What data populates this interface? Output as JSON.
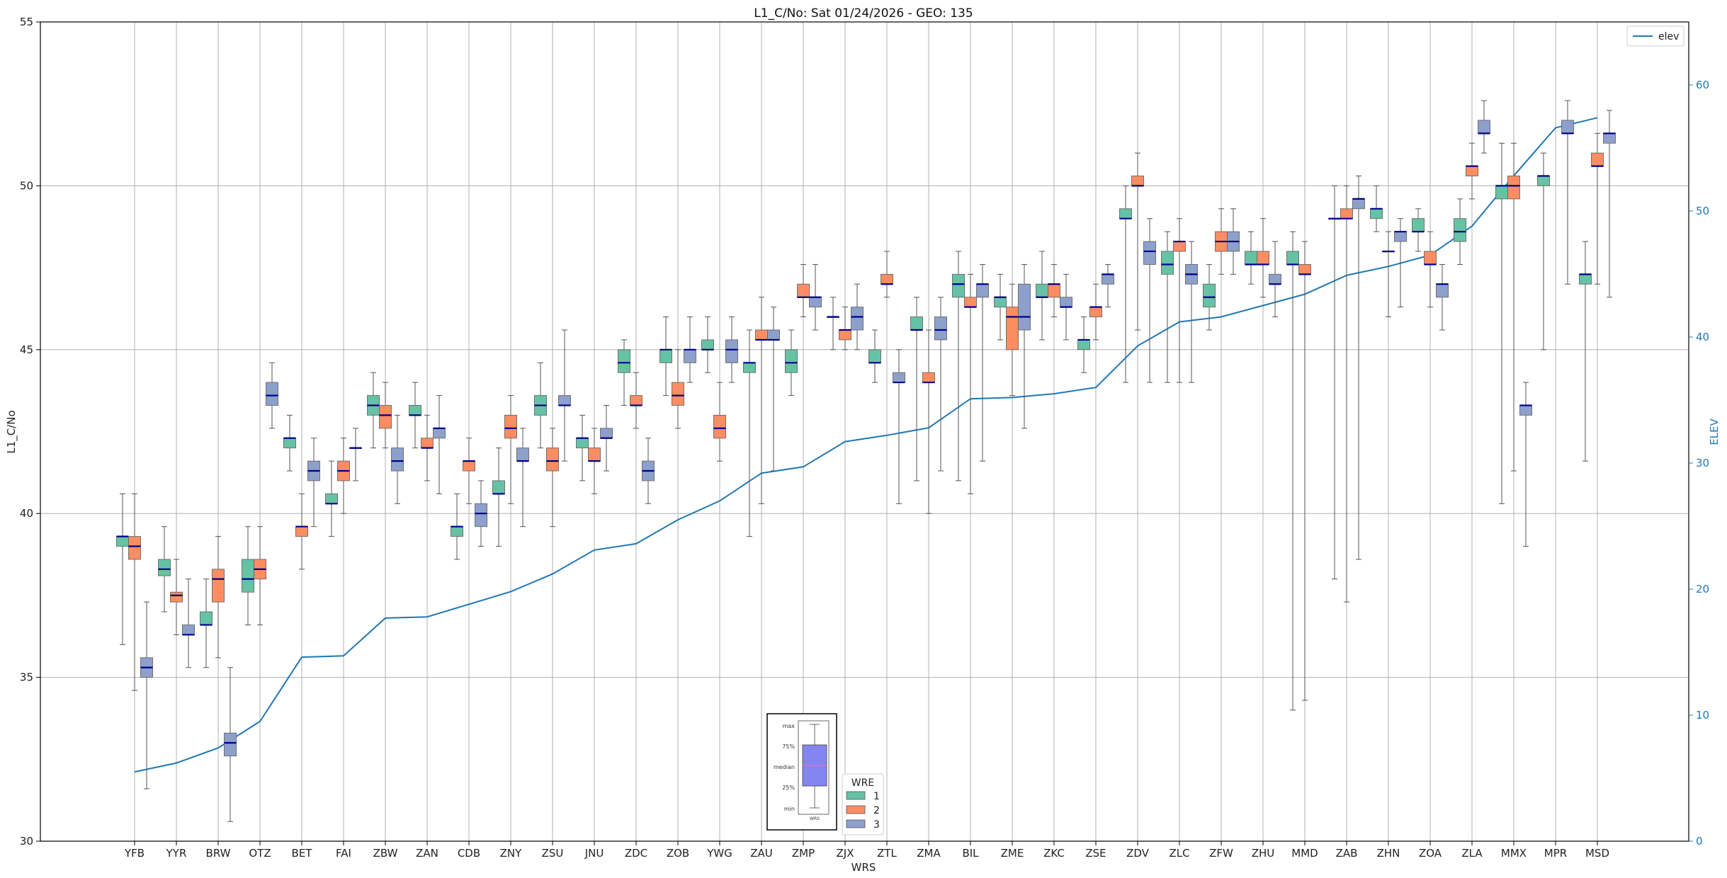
{
  "chart_data": {
    "type": "box",
    "title": "L1_C/No: Sat 01/24/2026 - GEO: 135",
    "xlabel": "WRS",
    "ylabel": "L1_C/No",
    "y2label": "ELEV",
    "ylim": [
      30,
      55
    ],
    "yticks": [
      30,
      35,
      40,
      45,
      50,
      55
    ],
    "y2lim": [
      0,
      65
    ],
    "y2ticks": [
      0,
      10,
      20,
      30,
      40,
      50,
      60
    ],
    "grid": true,
    "colors": {
      "1": "#66c2a5",
      "2": "#fc8d62",
      "3": "#8da0cb",
      "median": "#00008b",
      "elev": "#1f77b4"
    },
    "categories": [
      "YFB",
      "YYR",
      "BRW",
      "OTZ",
      "BET",
      "FAI",
      "ZBW",
      "ZAN",
      "CDB",
      "ZNY",
      "ZSU",
      "JNU",
      "ZDC",
      "ZOB",
      "YWG",
      "ZAU",
      "ZMP",
      "ZJX",
      "ZTL",
      "ZMA",
      "BIL",
      "ZME",
      "ZKC",
      "ZSE",
      "ZDV",
      "ZLC",
      "ZFW",
      "ZHU",
      "MMD",
      "ZAB",
      "ZHN",
      "ZOA",
      "ZLA",
      "MMX",
      "MPR",
      "MSD"
    ],
    "elev_legend": "elev",
    "elev": [
      5.5,
      6.2,
      7.4,
      9.5,
      14.6,
      14.7,
      17.7,
      17.8,
      18.8,
      19.8,
      21.2,
      23.1,
      23.6,
      25.5,
      27.0,
      29.2,
      29.7,
      31.7,
      32.2,
      32.8,
      35.1,
      35.2,
      35.5,
      36.0,
      39.3,
      41.2,
      41.6,
      42.5,
      43.4,
      44.9,
      45.6,
      46.5,
      48.8,
      52.8,
      56.6,
      57.4
    ],
    "boxes": [
      {
        "station": "YFB",
        "wre": "1",
        "min": 36.0,
        "q1": 39.0,
        "median": 39.3,
        "q3": 39.3,
        "max": 40.6
      },
      {
        "station": "YFB",
        "wre": "2",
        "min": 34.6,
        "q1": 38.6,
        "median": 39.0,
        "q3": 39.3,
        "max": 40.6
      },
      {
        "station": "YFB",
        "wre": "3",
        "min": 31.6,
        "q1": 35.0,
        "median": 35.3,
        "q3": 35.6,
        "max": 37.3
      },
      {
        "station": "YYR",
        "wre": "1",
        "min": 37.0,
        "q1": 38.1,
        "median": 38.3,
        "q3": 38.6,
        "max": 39.6
      },
      {
        "station": "YYR",
        "wre": "2",
        "min": 36.3,
        "q1": 37.3,
        "median": 37.5,
        "q3": 37.6,
        "max": 38.6
      },
      {
        "station": "YYR",
        "wre": "3",
        "min": 35.3,
        "q1": 36.3,
        "median": 36.3,
        "q3": 36.6,
        "max": 38.0
      },
      {
        "station": "BRW",
        "wre": "1",
        "min": 35.3,
        "q1": 36.6,
        "median": 36.6,
        "q3": 37.0,
        "max": 38.0
      },
      {
        "station": "BRW",
        "wre": "2",
        "min": 35.6,
        "q1": 37.3,
        "median": 38.0,
        "q3": 38.3,
        "max": 39.3
      },
      {
        "station": "BRW",
        "wre": "3",
        "min": 30.6,
        "q1": 32.6,
        "median": 33.0,
        "q3": 33.3,
        "max": 35.3
      },
      {
        "station": "OTZ",
        "wre": "1",
        "min": 36.6,
        "q1": 37.6,
        "median": 38.0,
        "q3": 38.6,
        "max": 39.6
      },
      {
        "station": "OTZ",
        "wre": "2",
        "min": 36.6,
        "q1": 38.0,
        "median": 38.3,
        "q3": 38.6,
        "max": 39.6
      },
      {
        "station": "OTZ",
        "wre": "3",
        "min": 42.6,
        "q1": 43.3,
        "median": 43.6,
        "q3": 44.0,
        "max": 44.6
      },
      {
        "station": "BET",
        "wre": "1",
        "min": 41.3,
        "q1": 42.0,
        "median": 42.3,
        "q3": 42.3,
        "max": 43.0
      },
      {
        "station": "BET",
        "wre": "2",
        "min": 38.3,
        "q1": 39.3,
        "median": 39.6,
        "q3": 39.6,
        "max": 40.6
      },
      {
        "station": "BET",
        "wre": "3",
        "min": 39.6,
        "q1": 41.0,
        "median": 41.3,
        "q3": 41.6,
        "max": 42.3
      },
      {
        "station": "FAI",
        "wre": "1",
        "min": 39.3,
        "q1": 40.3,
        "median": 40.3,
        "q3": 40.6,
        "max": 41.6
      },
      {
        "station": "FAI",
        "wre": "2",
        "min": 40.0,
        "q1": 41.0,
        "median": 41.3,
        "q3": 41.6,
        "max": 42.3
      },
      {
        "station": "FAI",
        "wre": "3",
        "min": 41.0,
        "q1": 42.0,
        "median": 42.0,
        "q3": 42.0,
        "max": 42.6
      },
      {
        "station": "ZBW",
        "wre": "1",
        "min": 42.0,
        "q1": 43.0,
        "median": 43.3,
        "q3": 43.6,
        "max": 44.3
      },
      {
        "station": "ZBW",
        "wre": "2",
        "min": 42.0,
        "q1": 42.6,
        "median": 43.0,
        "q3": 43.3,
        "max": 44.0
      },
      {
        "station": "ZBW",
        "wre": "3",
        "min": 40.3,
        "q1": 41.3,
        "median": 41.6,
        "q3": 42.0,
        "max": 43.0
      },
      {
        "station": "ZAN",
        "wre": "1",
        "min": 42.0,
        "q1": 43.0,
        "median": 43.0,
        "q3": 43.3,
        "max": 44.0
      },
      {
        "station": "ZAN",
        "wre": "2",
        "min": 41.0,
        "q1": 42.0,
        "median": 42.0,
        "q3": 42.3,
        "max": 43.0
      },
      {
        "station": "ZAN",
        "wre": "3",
        "min": 40.6,
        "q1": 42.3,
        "median": 42.6,
        "q3": 42.6,
        "max": 43.6
      },
      {
        "station": "CDB",
        "wre": "1",
        "min": 38.6,
        "q1": 39.3,
        "median": 39.6,
        "q3": 39.6,
        "max": 40.6
      },
      {
        "station": "CDB",
        "wre": "2",
        "min": 40.3,
        "q1": 41.3,
        "median": 41.6,
        "q3": 41.6,
        "max": 42.3
      },
      {
        "station": "CDB",
        "wre": "3",
        "min": 39.0,
        "q1": 39.6,
        "median": 40.0,
        "q3": 40.3,
        "max": 41.0
      },
      {
        "station": "ZNY",
        "wre": "1",
        "min": 39.0,
        "q1": 40.6,
        "median": 40.6,
        "q3": 41.0,
        "max": 42.0
      },
      {
        "station": "ZNY",
        "wre": "2",
        "min": 40.3,
        "q1": 42.3,
        "median": 42.6,
        "q3": 43.0,
        "max": 43.6
      },
      {
        "station": "ZNY",
        "wre": "3",
        "min": 39.6,
        "q1": 41.6,
        "median": 41.6,
        "q3": 42.0,
        "max": 42.6
      },
      {
        "station": "ZSU",
        "wre": "1",
        "min": 42.0,
        "q1": 43.0,
        "median": 43.3,
        "q3": 43.6,
        "max": 44.6
      },
      {
        "station": "ZSU",
        "wre": "2",
        "min": 39.6,
        "q1": 41.3,
        "median": 41.6,
        "q3": 42.0,
        "max": 42.6
      },
      {
        "station": "ZSU",
        "wre": "3",
        "min": 41.6,
        "q1": 43.3,
        "median": 43.3,
        "q3": 43.6,
        "max": 45.6
      },
      {
        "station": "JNU",
        "wre": "1",
        "min": 41.0,
        "q1": 42.0,
        "median": 42.3,
        "q3": 42.3,
        "max": 43.0
      },
      {
        "station": "JNU",
        "wre": "2",
        "min": 40.6,
        "q1": 41.6,
        "median": 41.6,
        "q3": 42.0,
        "max": 42.6
      },
      {
        "station": "JNU",
        "wre": "3",
        "min": 41.3,
        "q1": 42.3,
        "median": 42.3,
        "q3": 42.6,
        "max": 43.3
      },
      {
        "station": "ZDC",
        "wre": "1",
        "min": 43.3,
        "q1": 44.3,
        "median": 44.6,
        "q3": 45.0,
        "max": 45.3
      },
      {
        "station": "ZDC",
        "wre": "2",
        "min": 42.6,
        "q1": 43.3,
        "median": 43.3,
        "q3": 43.6,
        "max": 44.3
      },
      {
        "station": "ZDC",
        "wre": "3",
        "min": 40.3,
        "q1": 41.0,
        "median": 41.3,
        "q3": 41.6,
        "max": 42.3
      },
      {
        "station": "ZOB",
        "wre": "1",
        "min": 43.6,
        "q1": 44.6,
        "median": 45.0,
        "q3": 45.0,
        "max": 46.0
      },
      {
        "station": "ZOB",
        "wre": "2",
        "min": 42.6,
        "q1": 43.3,
        "median": 43.6,
        "q3": 44.0,
        "max": 45.0
      },
      {
        "station": "ZOB",
        "wre": "3",
        "min": 44.0,
        "q1": 44.6,
        "median": 45.0,
        "q3": 45.0,
        "max": 46.0
      },
      {
        "station": "YWG",
        "wre": "1",
        "min": 44.3,
        "q1": 45.0,
        "median": 45.0,
        "q3": 45.3,
        "max": 46.0
      },
      {
        "station": "YWG",
        "wre": "2",
        "min": 41.6,
        "q1": 42.3,
        "median": 42.6,
        "q3": 43.0,
        "max": 44.0
      },
      {
        "station": "YWG",
        "wre": "3",
        "min": 44.0,
        "q1": 44.6,
        "median": 45.0,
        "q3": 45.3,
        "max": 46.0
      },
      {
        "station": "ZAU",
        "wre": "1",
        "min": 39.3,
        "q1": 44.3,
        "median": 44.6,
        "q3": 44.6,
        "max": 45.6
      },
      {
        "station": "ZAU",
        "wre": "2",
        "min": 40.3,
        "q1": 45.3,
        "median": 45.3,
        "q3": 45.6,
        "max": 46.6
      },
      {
        "station": "ZAU",
        "wre": "3",
        "min": 41.3,
        "q1": 45.3,
        "median": 45.3,
        "q3": 45.6,
        "max": 46.3
      },
      {
        "station": "ZMP",
        "wre": "1",
        "min": 43.6,
        "q1": 44.3,
        "median": 44.6,
        "q3": 45.0,
        "max": 45.6
      },
      {
        "station": "ZMP",
        "wre": "2",
        "min": 46.0,
        "q1": 46.6,
        "median": 46.6,
        "q3": 47.0,
        "max": 47.6
      },
      {
        "station": "ZMP",
        "wre": "3",
        "min": 45.6,
        "q1": 46.3,
        "median": 46.6,
        "q3": 46.6,
        "max": 47.6
      },
      {
        "station": "ZJX",
        "wre": "1",
        "min": 45.0,
        "q1": 46.0,
        "median": 46.0,
        "q3": 46.0,
        "max": 46.6
      },
      {
        "station": "ZJX",
        "wre": "2",
        "min": 45.0,
        "q1": 45.3,
        "median": 45.6,
        "q3": 45.6,
        "max": 46.3
      },
      {
        "station": "ZJX",
        "wre": "3",
        "min": 45.0,
        "q1": 45.6,
        "median": 46.0,
        "q3": 46.3,
        "max": 47.0
      },
      {
        "station": "ZTL",
        "wre": "1",
        "min": 44.0,
        "q1": 44.6,
        "median": 44.6,
        "q3": 45.0,
        "max": 45.6
      },
      {
        "station": "ZTL",
        "wre": "2",
        "min": 46.6,
        "q1": 47.0,
        "median": 47.0,
        "q3": 47.3,
        "max": 48.0
      },
      {
        "station": "ZTL",
        "wre": "3",
        "min": 40.3,
        "q1": 44.0,
        "median": 44.0,
        "q3": 44.3,
        "max": 45.0
      },
      {
        "station": "ZMA",
        "wre": "1",
        "min": 41.0,
        "q1": 45.6,
        "median": 45.6,
        "q3": 46.0,
        "max": 46.6
      },
      {
        "station": "ZMA",
        "wre": "2",
        "min": 40.0,
        "q1": 44.0,
        "median": 44.0,
        "q3": 44.3,
        "max": 45.6
      },
      {
        "station": "ZMA",
        "wre": "3",
        "min": 41.3,
        "q1": 45.3,
        "median": 45.6,
        "q3": 46.0,
        "max": 46.6
      },
      {
        "station": "BIL",
        "wre": "1",
        "min": 41.0,
        "q1": 46.6,
        "median": 47.0,
        "q3": 47.3,
        "max": 48.0
      },
      {
        "station": "BIL",
        "wre": "2",
        "min": 40.6,
        "q1": 46.3,
        "median": 46.3,
        "q3": 46.6,
        "max": 47.3
      },
      {
        "station": "BIL",
        "wre": "3",
        "min": 41.6,
        "q1": 46.6,
        "median": 47.0,
        "q3": 47.0,
        "max": 47.6
      },
      {
        "station": "ZME",
        "wre": "1",
        "min": 45.3,
        "q1": 46.3,
        "median": 46.6,
        "q3": 46.6,
        "max": 47.3
      },
      {
        "station": "ZME",
        "wre": "2",
        "min": 43.6,
        "q1": 45.0,
        "median": 46.0,
        "q3": 46.3,
        "max": 47.0
      },
      {
        "station": "ZME",
        "wre": "3",
        "min": 42.6,
        "q1": 45.6,
        "median": 46.0,
        "q3": 47.0,
        "max": 47.6
      },
      {
        "station": "ZKC",
        "wre": "1",
        "min": 45.3,
        "q1": 46.6,
        "median": 46.6,
        "q3": 47.0,
        "max": 48.0
      },
      {
        "station": "ZKC",
        "wre": "2",
        "min": 46.0,
        "q1": 46.6,
        "median": 47.0,
        "q3": 47.0,
        "max": 47.6
      },
      {
        "station": "ZKC",
        "wre": "3",
        "min": 45.3,
        "q1": 46.3,
        "median": 46.3,
        "q3": 46.6,
        "max": 47.3
      },
      {
        "station": "ZSE",
        "wre": "1",
        "min": 44.3,
        "q1": 45.0,
        "median": 45.3,
        "q3": 45.3,
        "max": 46.0
      },
      {
        "station": "ZSE",
        "wre": "2",
        "min": 45.3,
        "q1": 46.0,
        "median": 46.3,
        "q3": 46.3,
        "max": 47.0
      },
      {
        "station": "ZSE",
        "wre": "3",
        "min": 46.3,
        "q1": 47.0,
        "median": 47.3,
        "q3": 47.3,
        "max": 47.6
      },
      {
        "station": "ZDV",
        "wre": "1",
        "min": 44.0,
        "q1": 49.0,
        "median": 49.0,
        "q3": 49.3,
        "max": 50.0
      },
      {
        "station": "ZDV",
        "wre": "2",
        "min": 45.6,
        "q1": 50.0,
        "median": 50.0,
        "q3": 50.3,
        "max": 51.0
      },
      {
        "station": "ZDV",
        "wre": "3",
        "min": 44.0,
        "q1": 47.6,
        "median": 48.0,
        "q3": 48.3,
        "max": 49.0
      },
      {
        "station": "ZLC",
        "wre": "1",
        "min": 44.0,
        "q1": 47.3,
        "median": 47.6,
        "q3": 48.0,
        "max": 48.6
      },
      {
        "station": "ZLC",
        "wre": "2",
        "min": 44.0,
        "q1": 48.0,
        "median": 48.3,
        "q3": 48.3,
        "max": 49.0
      },
      {
        "station": "ZLC",
        "wre": "3",
        "min": 44.0,
        "q1": 47.0,
        "median": 47.3,
        "q3": 47.6,
        "max": 48.3
      },
      {
        "station": "ZFW",
        "wre": "1",
        "min": 45.6,
        "q1": 46.3,
        "median": 46.6,
        "q3": 47.0,
        "max": 47.6
      },
      {
        "station": "ZFW",
        "wre": "2",
        "min": 47.3,
        "q1": 48.0,
        "median": 48.3,
        "q3": 48.6,
        "max": 49.3
      },
      {
        "station": "ZFW",
        "wre": "3",
        "min": 47.3,
        "q1": 48.0,
        "median": 48.3,
        "q3": 48.6,
        "max": 49.3
      },
      {
        "station": "ZHU",
        "wre": "1",
        "min": 47.0,
        "q1": 47.6,
        "median": 47.6,
        "q3": 48.0,
        "max": 48.6
      },
      {
        "station": "ZHU",
        "wre": "2",
        "min": 46.6,
        "q1": 47.6,
        "median": 47.6,
        "q3": 48.0,
        "max": 49.0
      },
      {
        "station": "ZHU",
        "wre": "3",
        "min": 46.0,
        "q1": 47.0,
        "median": 47.0,
        "q3": 47.3,
        "max": 48.3
      },
      {
        "station": "MMD",
        "wre": "1",
        "min": 34.0,
        "q1": 47.6,
        "median": 47.6,
        "q3": 48.0,
        "max": 48.6
      },
      {
        "station": "MMD",
        "wre": "2",
        "min": 34.3,
        "q1": 47.3,
        "median": 47.3,
        "q3": 47.6,
        "max": 48.3
      },
      {
        "station": "ZAB",
        "wre": "1",
        "min": 38.0,
        "q1": 49.0,
        "median": 49.0,
        "q3": 49.0,
        "max": 50.0
      },
      {
        "station": "ZAB",
        "wre": "2",
        "min": 37.3,
        "q1": 49.0,
        "median": 49.0,
        "q3": 49.3,
        "max": 50.0
      },
      {
        "station": "ZAB",
        "wre": "3",
        "min": 38.6,
        "q1": 49.3,
        "median": 49.6,
        "q3": 49.6,
        "max": 50.3
      },
      {
        "station": "ZHN",
        "wre": "1",
        "min": 48.6,
        "q1": 49.0,
        "median": 49.3,
        "q3": 49.3,
        "max": 50.0
      },
      {
        "station": "ZHN",
        "wre": "2",
        "min": 46.0,
        "q1": 48.0,
        "median": 48.0,
        "q3": 48.0,
        "max": 48.6
      },
      {
        "station": "ZHN",
        "wre": "3",
        "min": 46.3,
        "q1": 48.3,
        "median": 48.6,
        "q3": 48.6,
        "max": 49.0
      },
      {
        "station": "ZOA",
        "wre": "1",
        "min": 48.0,
        "q1": 48.6,
        "median": 48.6,
        "q3": 49.0,
        "max": 49.3
      },
      {
        "station": "ZOA",
        "wre": "2",
        "min": 46.3,
        "q1": 47.6,
        "median": 47.6,
        "q3": 48.0,
        "max": 48.6
      },
      {
        "station": "ZOA",
        "wre": "3",
        "min": 45.6,
        "q1": 46.6,
        "median": 47.0,
        "q3": 47.0,
        "max": 47.6
      },
      {
        "station": "ZLA",
        "wre": "1",
        "min": 47.6,
        "q1": 48.3,
        "median": 48.6,
        "q3": 49.0,
        "max": 49.6
      },
      {
        "station": "ZLA",
        "wre": "2",
        "min": 49.6,
        "q1": 50.3,
        "median": 50.6,
        "q3": 50.6,
        "max": 51.3
      },
      {
        "station": "ZLA",
        "wre": "3",
        "min": 51.0,
        "q1": 51.6,
        "median": 51.6,
        "q3": 52.0,
        "max": 52.6
      },
      {
        "station": "MMX",
        "wre": "1",
        "min": 40.3,
        "q1": 49.6,
        "median": 50.0,
        "q3": 50.0,
        "max": 51.3
      },
      {
        "station": "MMX",
        "wre": "2",
        "min": 41.3,
        "q1": 49.6,
        "median": 50.0,
        "q3": 50.3,
        "max": 51.3
      },
      {
        "station": "MMX",
        "wre": "3",
        "min": 39.0,
        "q1": 43.0,
        "median": 43.3,
        "q3": 43.3,
        "max": 44.0
      },
      {
        "station": "MPR",
        "wre": "1",
        "min": 45.0,
        "q1": 50.0,
        "median": 50.3,
        "q3": 50.3,
        "max": 51.0
      },
      {
        "station": "MPR",
        "wre": "3",
        "min": 47.0,
        "q1": 51.6,
        "median": 51.6,
        "q3": 52.0,
        "max": 52.6
      },
      {
        "station": "MSD",
        "wre": "1",
        "min": 41.6,
        "q1": 47.0,
        "median": 47.3,
        "q3": 47.3,
        "max": 48.3
      },
      {
        "station": "MSD",
        "wre": "2",
        "min": 47.0,
        "q1": 50.6,
        "median": 50.6,
        "q3": 51.0,
        "max": 51.6
      },
      {
        "station": "MSD",
        "wre": "3",
        "min": 46.6,
        "q1": 51.3,
        "median": 51.6,
        "q3": 51.6,
        "max": 52.3
      }
    ],
    "legend": {
      "title": "WRE",
      "entries": [
        "1",
        "2",
        "3"
      ],
      "placement": "bottom-center"
    },
    "key_labels": [
      "max",
      "75%",
      "median",
      "25%",
      "min",
      "WRS"
    ]
  }
}
